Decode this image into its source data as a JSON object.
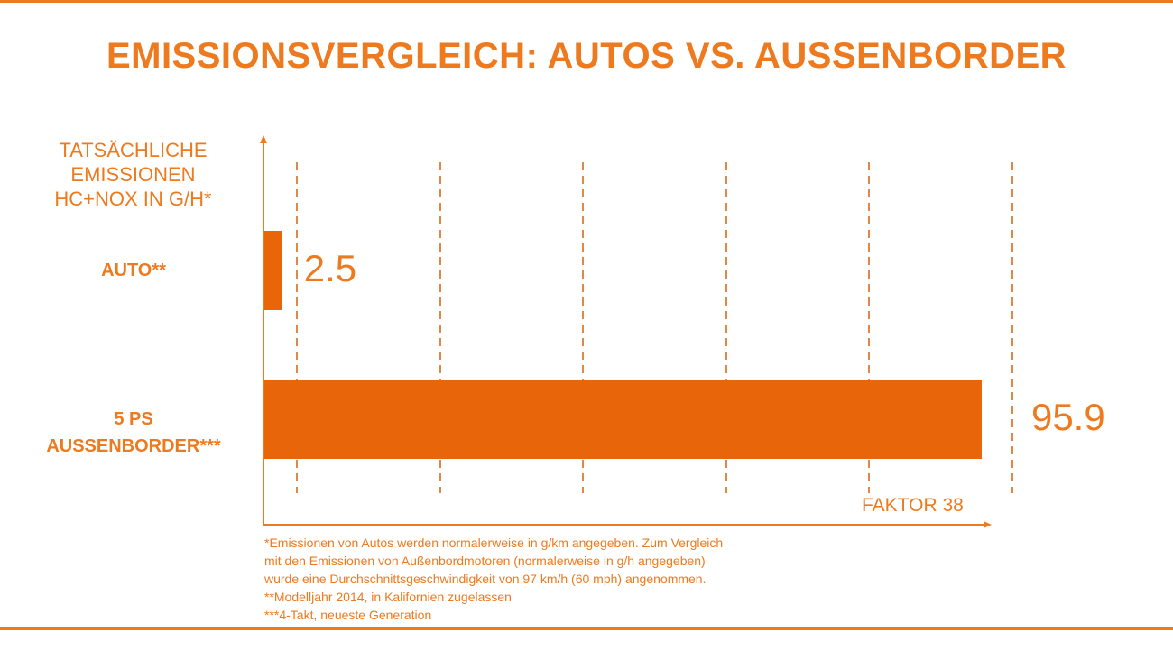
{
  "title": "EMISSIONSVERGLEICH: AUTOS VS. AUSSENBORDER",
  "colors": {
    "accent": "#ee7a1f",
    "bar": "#e8650a"
  },
  "chart_data": {
    "type": "bar",
    "orientation": "horizontal",
    "ylabel_lines": [
      "TATSÄCHLICHE",
      "EMISSIONEN",
      "HC+NOX IN G/H*"
    ],
    "categories": [
      {
        "lines": [
          "AUTO**"
        ]
      },
      {
        "lines": [
          "5 PS",
          "AUSSENBORDER***"
        ]
      }
    ],
    "values": [
      2.5,
      95.9
    ],
    "value_labels": [
      "2.5",
      "95.9"
    ],
    "xlim": [
      0,
      100
    ],
    "grid": "dashed-vertical",
    "annotation": "FAKTOR 38"
  },
  "footnotes": [
    "*Emissionen von Autos werden normalerweise in g/km angegeben. Zum Vergleich",
    "mit den Emissionen von Außenbordmotoren (normalerweise in g/h angegeben)",
    "wurde eine Durchschnittsgeschwindigkeit von 97 km/h (60 mph) angenommen.",
    "**Modelljahr 2014, in Kalifornien zugelassen",
    "***4-Takt, neueste Generation"
  ]
}
